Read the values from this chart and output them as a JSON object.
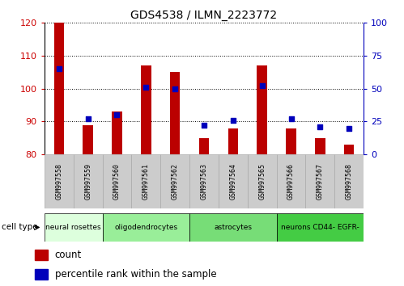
{
  "title": "GDS4538 / ILMN_2223772",
  "samples": [
    "GSM997558",
    "GSM997559",
    "GSM997560",
    "GSM997561",
    "GSM997562",
    "GSM997563",
    "GSM997564",
    "GSM997565",
    "GSM997566",
    "GSM997567",
    "GSM997568"
  ],
  "bar_values": [
    120,
    89,
    93,
    107,
    105,
    85,
    88,
    107,
    88,
    85,
    83
  ],
  "dot_values": [
    65,
    27,
    30,
    51,
    50,
    22,
    26,
    52,
    27,
    21,
    20
  ],
  "ylim_left": [
    80,
    120
  ],
  "ylim_right": [
    0,
    100
  ],
  "yticks_left": [
    80,
    90,
    100,
    110,
    120
  ],
  "yticks_right": [
    0,
    25,
    50,
    75,
    100
  ],
  "bar_color": "#bb0000",
  "dot_color": "#0000bb",
  "cell_types": [
    {
      "label": "neural rosettes",
      "start": 0,
      "end": 2,
      "color": "#ddffdd"
    },
    {
      "label": "oligodendrocytes",
      "start": 2,
      "end": 5,
      "color": "#99ee99"
    },
    {
      "label": "astrocytes",
      "start": 5,
      "end": 8,
      "color": "#77dd77"
    },
    {
      "label": "neurons CD44- EGFR-",
      "start": 8,
      "end": 11,
      "color": "#44cc44"
    }
  ],
  "cell_type_label": "cell type",
  "legend_count": "count",
  "legend_percentile": "percentile rank within the sample",
  "bar_width": 0.35,
  "tick_label_color_left": "#cc0000",
  "tick_label_color_right": "#0000cc",
  "xlabel_bg": "#cccccc",
  "xlabel_edge": "#aaaaaa"
}
